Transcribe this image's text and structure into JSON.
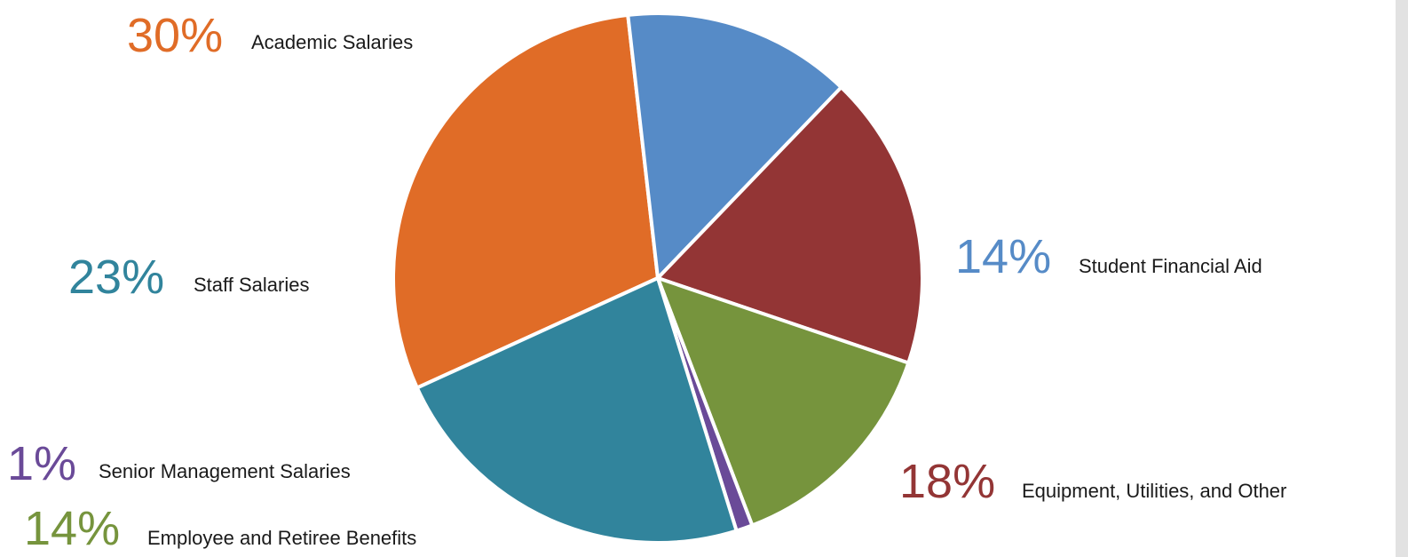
{
  "chart_data": {
    "type": "pie",
    "title": "",
    "unit": "%",
    "slices": [
      {
        "label": "Academic Salaries",
        "value": 30,
        "pct_text": "30%",
        "color": "#E06C27"
      },
      {
        "label": "Student Financial Aid",
        "value": 14,
        "pct_text": "14%",
        "color": "#568BC7"
      },
      {
        "label": "Equipment, Utilities, and Other",
        "value": 18,
        "pct_text": "18%",
        "color": "#933535"
      },
      {
        "label": "Employee and Retiree Benefits",
        "value": 14,
        "pct_text": "14%",
        "color": "#76943D"
      },
      {
        "label": "Senior Management Salaries",
        "value": 1,
        "pct_text": "1%",
        "color": "#6A4A98"
      },
      {
        "label": "Staff Salaries",
        "value": 23,
        "pct_text": "23%",
        "color": "#31849C"
      }
    ]
  }
}
